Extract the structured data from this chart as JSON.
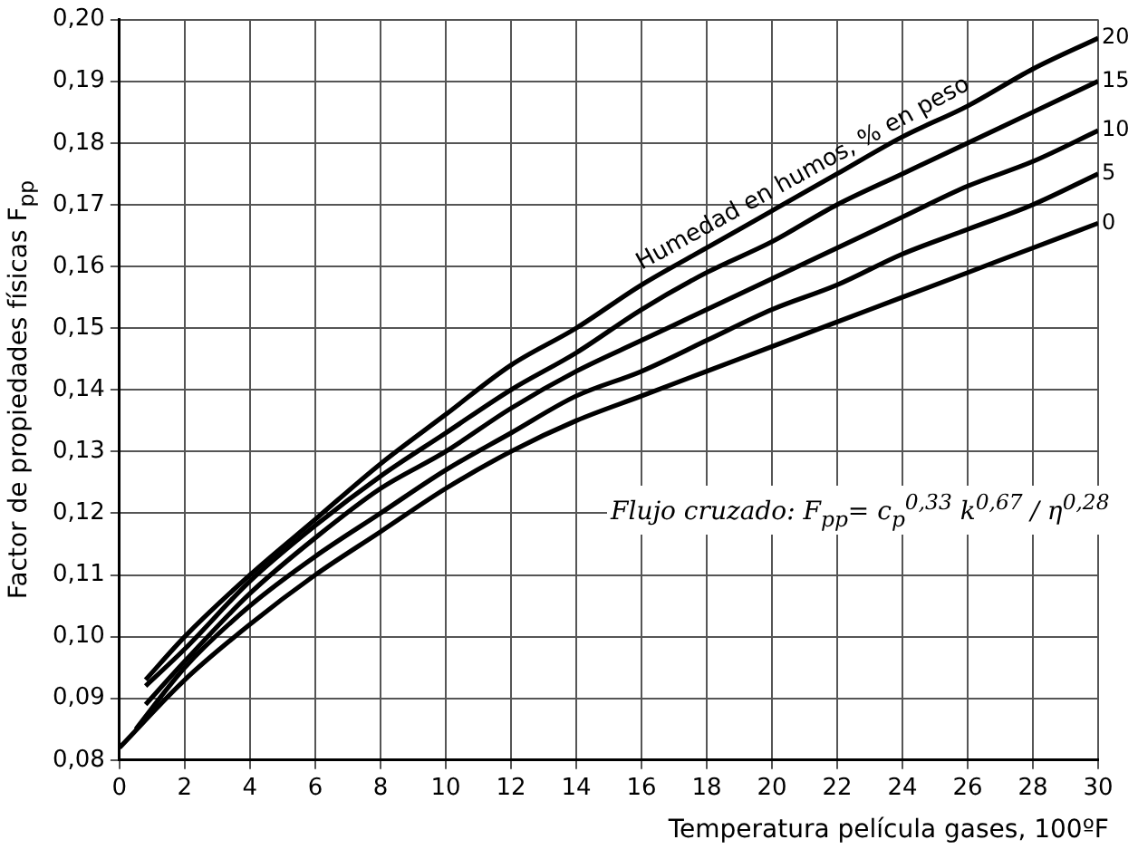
{
  "chart_data": {
    "type": "line",
    "xlabel": "Temperatura película gases, 100ºF",
    "ylabel": "Factor de propiedades físicas F$_{pp}$",
    "xlim": [
      0,
      30
    ],
    "xticks": [
      0,
      2,
      4,
      6,
      8,
      10,
      12,
      14,
      16,
      18,
      20,
      22,
      24,
      26,
      28,
      30
    ],
    "ylim": [
      0.08,
      0.2
    ],
    "yticks": [
      {
        "value": 0.08,
        "label": "0,08"
      },
      {
        "value": 0.09,
        "label": "0,09"
      },
      {
        "value": 0.1,
        "label": "0,10"
      },
      {
        "value": 0.11,
        "label": "0,11"
      },
      {
        "value": 0.12,
        "label": "0,12"
      },
      {
        "value": 0.13,
        "label": "0,13"
      },
      {
        "value": 0.14,
        "label": "0,14"
      },
      {
        "value": 0.15,
        "label": "0,15"
      },
      {
        "value": 0.16,
        "label": "0,16"
      },
      {
        "value": 0.17,
        "label": "0,17"
      },
      {
        "value": 0.18,
        "label": "0,18"
      },
      {
        "value": 0.19,
        "label": "0,19"
      },
      {
        "value": 0.2,
        "label": "0,20"
      }
    ],
    "grid": true,
    "legend": false,
    "marker": "none",
    "line_style": "solid",
    "annotations": [
      "Humedad en humos, % en peso",
      "Flujo cruzado: F$_{pp}$= c$_{p}$$^{0,33}$ k$^{0,67}$ / η$^{0,28}$"
    ],
    "series": [
      {
        "name": "0",
        "color": "#000000",
        "x": [
          0,
          2,
          4,
          6,
          8,
          10,
          12,
          14,
          16,
          18,
          20,
          22,
          24,
          26,
          28,
          30
        ],
        "values": [
          0.082,
          0.093,
          0.102,
          0.11,
          0.117,
          0.124,
          0.13,
          0.135,
          0.139,
          0.143,
          0.147,
          0.151,
          0.155,
          0.159,
          0.163,
          0.167
        ]
      },
      {
        "name": "5",
        "color": "#000000",
        "x": [
          0.5,
          2,
          4,
          6,
          8,
          10,
          12,
          14,
          16,
          18,
          20,
          22,
          24,
          26,
          28,
          30
        ],
        "values": [
          0.085,
          0.095,
          0.105,
          0.113,
          0.12,
          0.127,
          0.133,
          0.139,
          0.143,
          0.148,
          0.153,
          0.157,
          0.162,
          0.166,
          0.17,
          0.175
        ]
      },
      {
        "name": "10",
        "color": "#000000",
        "x": [
          0.8,
          2,
          4,
          6,
          8,
          10,
          12,
          14,
          16,
          18,
          20,
          22,
          24,
          26,
          28,
          30
        ],
        "values": [
          0.089,
          0.096,
          0.107,
          0.116,
          0.124,
          0.13,
          0.137,
          0.143,
          0.148,
          0.153,
          0.158,
          0.163,
          0.168,
          0.173,
          0.177,
          0.182
        ]
      },
      {
        "name": "15",
        "color": "#000000",
        "x": [
          0.8,
          2,
          4,
          6,
          8,
          10,
          12,
          14,
          16,
          18,
          20,
          22,
          24,
          26,
          28,
          30
        ],
        "values": [
          0.092,
          0.098,
          0.109,
          0.118,
          0.126,
          0.133,
          0.14,
          0.146,
          0.153,
          0.159,
          0.164,
          0.17,
          0.175,
          0.18,
          0.185,
          0.19
        ]
      },
      {
        "name": "20",
        "color": "#000000",
        "x": [
          0.8,
          2,
          4,
          6,
          8,
          10,
          12,
          14,
          16,
          18,
          20,
          22,
          24,
          26,
          28,
          30
        ],
        "values": [
          0.093,
          0.1,
          0.11,
          0.119,
          0.128,
          0.136,
          0.144,
          0.15,
          0.157,
          0.163,
          0.169,
          0.175,
          0.181,
          0.186,
          0.192,
          0.197
        ]
      }
    ]
  }
}
